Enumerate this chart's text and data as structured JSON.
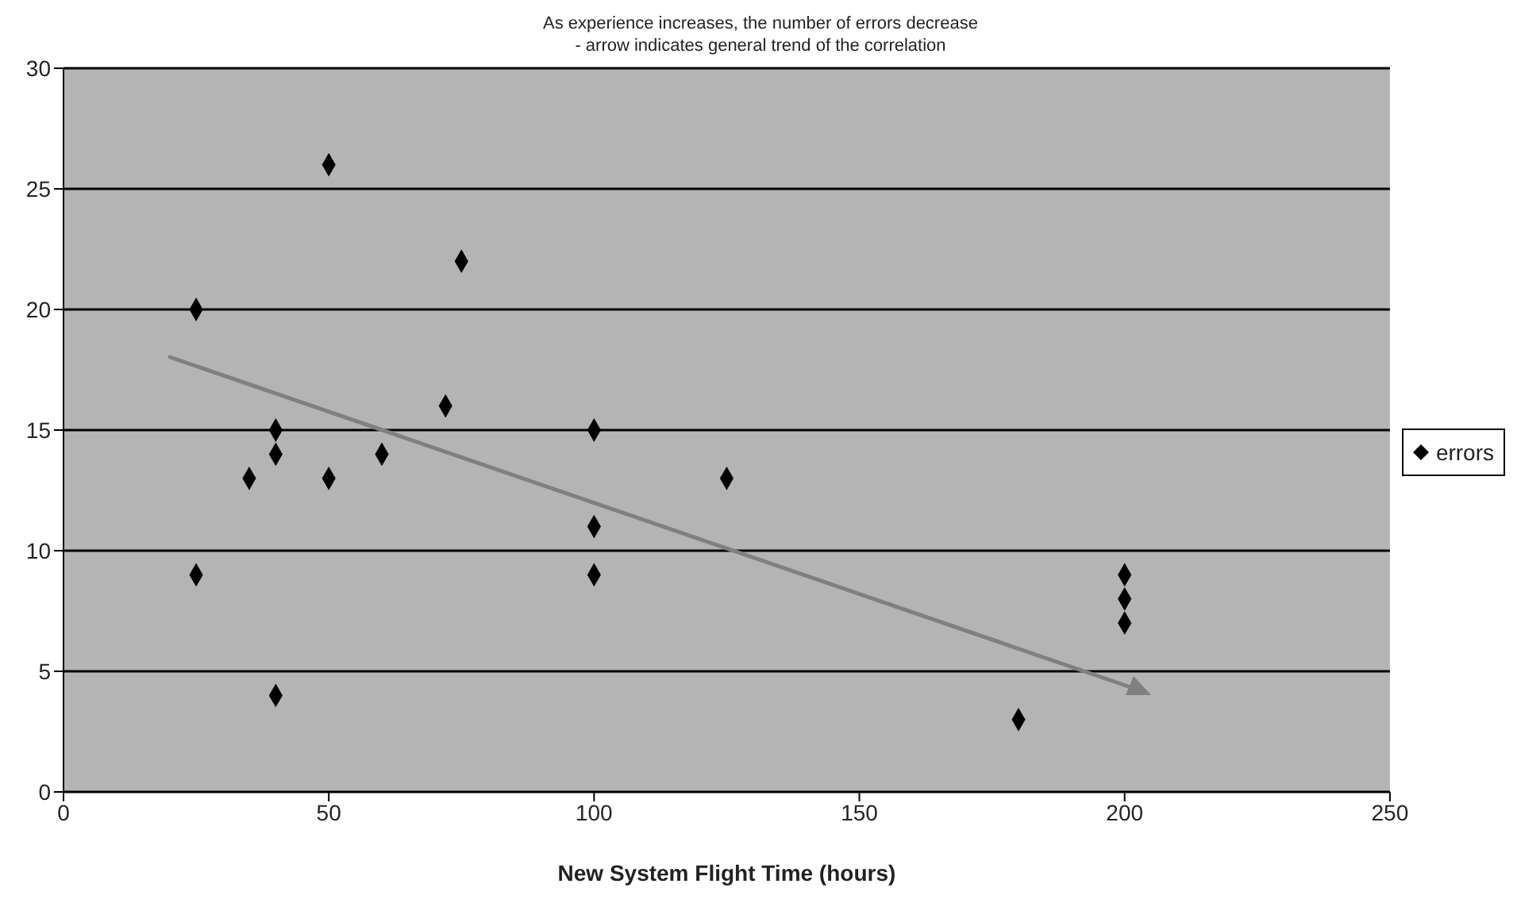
{
  "chart_data": {
    "type": "scatter",
    "title": "As experience increases, the number of errors decrease",
    "subtitle": "- arrow indicates general trend of the correlation",
    "xlabel": "New System Flight Time (hours)",
    "x": [
      25,
      25,
      35,
      40,
      40,
      40,
      50,
      50,
      60,
      72,
      75,
      100,
      100,
      100,
      125,
      180,
      200,
      200,
      200
    ],
    "series": [
      {
        "name": "errors",
        "color": "#000000",
        "values": [
          20,
          9,
          13,
          15,
          14,
          4,
          26,
          13,
          14,
          16,
          22,
          15,
          11,
          9,
          13,
          3,
          9,
          8,
          7
        ]
      }
    ],
    "xlim": [
      0,
      250
    ],
    "xticks": [
      0,
      50,
      100,
      150,
      200,
      250
    ],
    "ylim": [
      0,
      30
    ],
    "yticks": [
      0,
      5,
      10,
      15,
      20,
      25,
      30
    ],
    "grid": "y",
    "legend": "right",
    "marker": "diamond"
  }
}
